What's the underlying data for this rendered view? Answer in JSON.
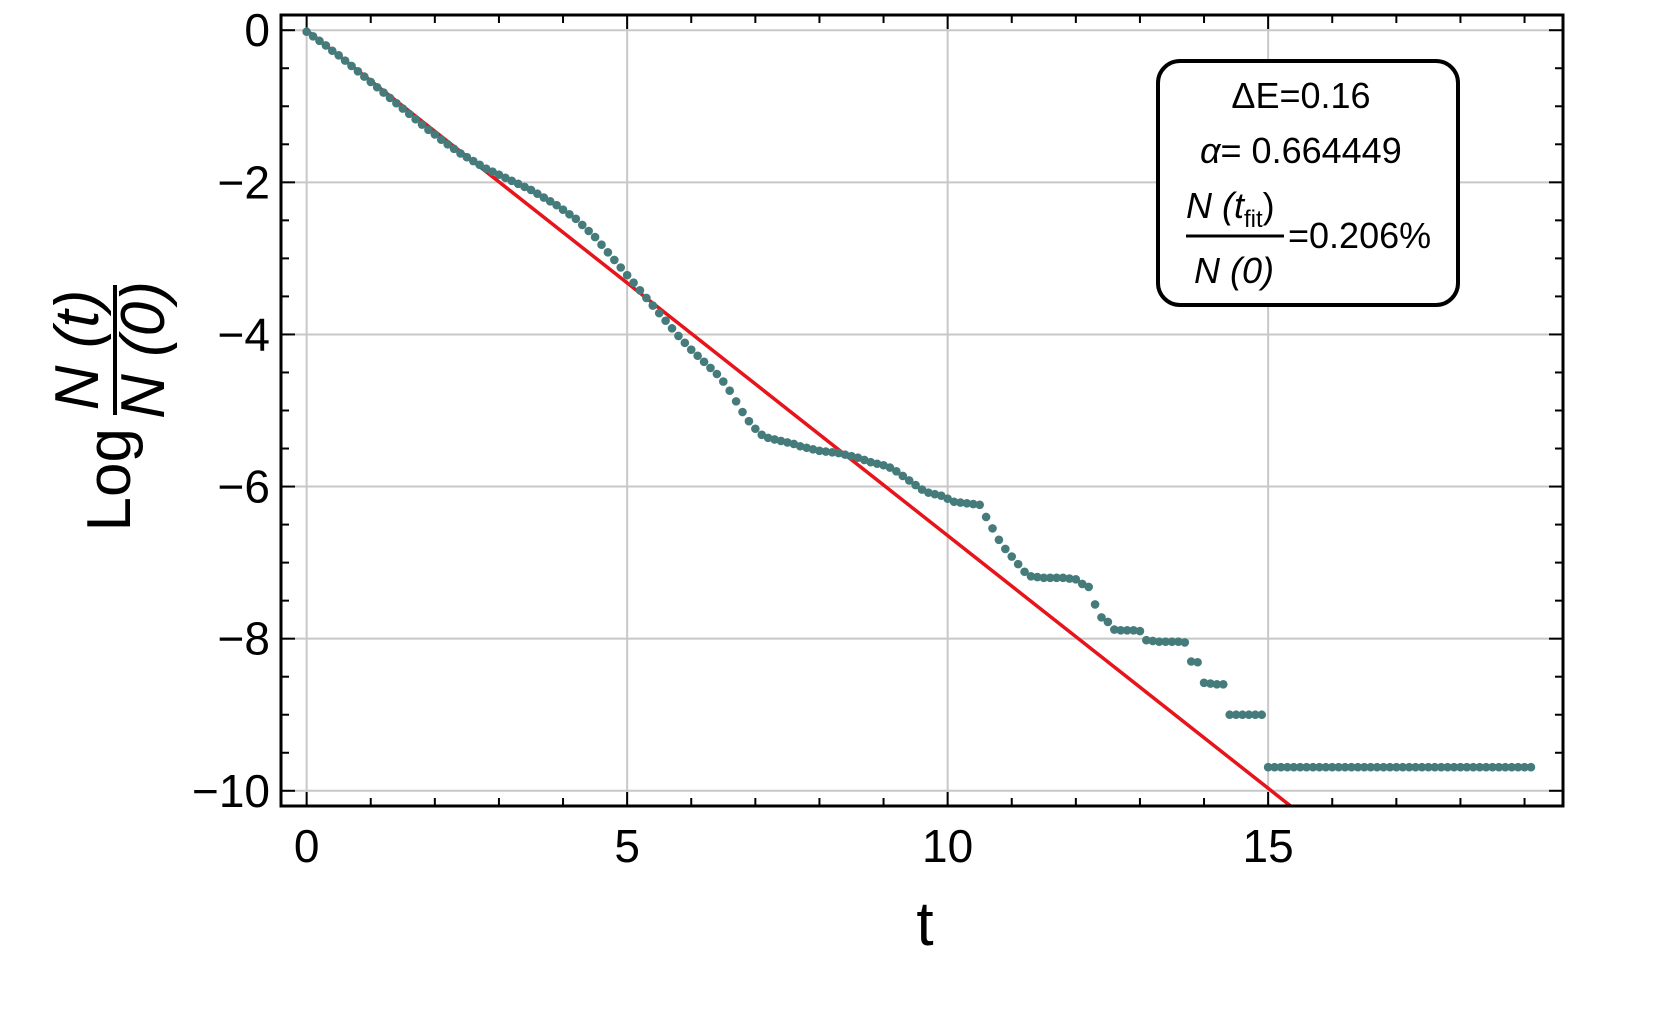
{
  "chart_data": {
    "type": "scatter",
    "xlabel": "t",
    "ylabel": {
      "prefix": "Log",
      "numerator": "N (t)",
      "denominator": "N (0)"
    },
    "xlim": [
      -0.4,
      19.6
    ],
    "ylim": [
      -10.2,
      0.2
    ],
    "xticks": [
      0,
      5,
      10,
      15
    ],
    "xtick_labels": [
      "0",
      "5",
      "10",
      "15"
    ],
    "yticks": [
      0,
      -2,
      -4,
      -6,
      -8,
      -10
    ],
    "ytick_labels": [
      "0",
      "−2",
      "−4",
      "−6",
      "−8",
      "−10"
    ],
    "grid": true,
    "marker_color": "#457b7b",
    "fit_color": "#e8141b",
    "fit_line": {
      "slope": -0.664449,
      "intercept": 0,
      "x_range": [
        0,
        15.35
      ]
    },
    "data_points": [
      [
        0,
        -0.02
      ],
      [
        0.1,
        -0.08
      ],
      [
        0.2,
        -0.14
      ],
      [
        0.3,
        -0.2
      ],
      [
        0.4,
        -0.27
      ],
      [
        0.5,
        -0.33
      ],
      [
        0.6,
        -0.4
      ],
      [
        0.7,
        -0.47
      ],
      [
        0.8,
        -0.54
      ],
      [
        0.9,
        -0.61
      ],
      [
        1.0,
        -0.68
      ],
      [
        1.1,
        -0.75
      ],
      [
        1.2,
        -0.82
      ],
      [
        1.3,
        -0.89
      ],
      [
        1.4,
        -0.96
      ],
      [
        1.5,
        -1.03
      ],
      [
        1.6,
        -1.1
      ],
      [
        1.7,
        -1.17
      ],
      [
        1.8,
        -1.24
      ],
      [
        1.9,
        -1.31
      ],
      [
        2.0,
        -1.37
      ],
      [
        2.1,
        -1.44
      ],
      [
        2.2,
        -1.5
      ],
      [
        2.3,
        -1.56
      ],
      [
        2.4,
        -1.62
      ],
      [
        2.5,
        -1.67
      ],
      [
        2.6,
        -1.72
      ],
      [
        2.7,
        -1.77
      ],
      [
        2.8,
        -1.82
      ],
      [
        2.9,
        -1.86
      ],
      [
        3.0,
        -1.9
      ],
      [
        3.1,
        -1.94
      ],
      [
        3.2,
        -1.98
      ],
      [
        3.3,
        -2.02
      ],
      [
        3.4,
        -2.06
      ],
      [
        3.5,
        -2.1
      ],
      [
        3.6,
        -2.15
      ],
      [
        3.7,
        -2.2
      ],
      [
        3.8,
        -2.25
      ],
      [
        3.9,
        -2.3
      ],
      [
        4.0,
        -2.36
      ],
      [
        4.1,
        -2.42
      ],
      [
        4.2,
        -2.48
      ],
      [
        4.3,
        -2.56
      ],
      [
        4.4,
        -2.64
      ],
      [
        4.5,
        -2.72
      ],
      [
        4.6,
        -2.82
      ],
      [
        4.7,
        -2.92
      ],
      [
        4.8,
        -3.02
      ],
      [
        4.9,
        -3.12
      ],
      [
        5.0,
        -3.22
      ],
      [
        5.1,
        -3.32
      ],
      [
        5.2,
        -3.42
      ],
      [
        5.3,
        -3.52
      ],
      [
        5.4,
        -3.62
      ],
      [
        5.5,
        -3.72
      ],
      [
        5.6,
        -3.82
      ],
      [
        5.7,
        -3.92
      ],
      [
        5.8,
        -4.02
      ],
      [
        5.9,
        -4.11
      ],
      [
        6.0,
        -4.2
      ],
      [
        6.1,
        -4.28
      ],
      [
        6.2,
        -4.36
      ],
      [
        6.3,
        -4.44
      ],
      [
        6.4,
        -4.52
      ],
      [
        6.5,
        -4.62
      ],
      [
        6.6,
        -4.74
      ],
      [
        6.7,
        -4.88
      ],
      [
        6.8,
        -5.02
      ],
      [
        6.9,
        -5.14
      ],
      [
        7.0,
        -5.24
      ],
      [
        7.1,
        -5.32
      ],
      [
        7.2,
        -5.36
      ],
      [
        7.3,
        -5.38
      ],
      [
        7.4,
        -5.4
      ],
      [
        7.5,
        -5.42
      ],
      [
        7.6,
        -5.44
      ],
      [
        7.7,
        -5.47
      ],
      [
        7.8,
        -5.49
      ],
      [
        7.9,
        -5.51
      ],
      [
        8.0,
        -5.53
      ],
      [
        8.1,
        -5.54
      ],
      [
        8.2,
        -5.55
      ],
      [
        8.3,
        -5.56
      ],
      [
        8.4,
        -5.58
      ],
      [
        8.5,
        -5.6
      ],
      [
        8.6,
        -5.62
      ],
      [
        8.7,
        -5.65
      ],
      [
        8.8,
        -5.68
      ],
      [
        8.9,
        -5.7
      ],
      [
        9.0,
        -5.72
      ],
      [
        9.1,
        -5.75
      ],
      [
        9.2,
        -5.8
      ],
      [
        9.3,
        -5.86
      ],
      [
        9.4,
        -5.92
      ],
      [
        9.5,
        -5.98
      ],
      [
        9.6,
        -6.04
      ],
      [
        9.7,
        -6.08
      ],
      [
        9.8,
        -6.1
      ],
      [
        9.9,
        -6.12
      ],
      [
        10.0,
        -6.16
      ],
      [
        10.1,
        -6.2
      ],
      [
        10.2,
        -6.21
      ],
      [
        10.3,
        -6.22
      ],
      [
        10.4,
        -6.23
      ],
      [
        10.5,
        -6.24
      ],
      [
        10.6,
        -6.4
      ],
      [
        10.7,
        -6.55
      ],
      [
        10.8,
        -6.7
      ],
      [
        10.9,
        -6.82
      ],
      [
        11.0,
        -6.92
      ],
      [
        11.1,
        -7.02
      ],
      [
        11.2,
        -7.12
      ],
      [
        11.3,
        -7.18
      ],
      [
        11.4,
        -7.19
      ],
      [
        11.5,
        -7.2
      ],
      [
        11.6,
        -7.2
      ],
      [
        11.7,
        -7.2
      ],
      [
        11.8,
        -7.2
      ],
      [
        11.9,
        -7.21
      ],
      [
        12.0,
        -7.22
      ],
      [
        12.1,
        -7.28
      ],
      [
        12.2,
        -7.32
      ],
      [
        12.3,
        -7.55
      ],
      [
        12.4,
        -7.72
      ],
      [
        12.5,
        -7.78
      ],
      [
        12.6,
        -7.88
      ],
      [
        12.7,
        -7.89
      ],
      [
        12.8,
        -7.89
      ],
      [
        12.9,
        -7.89
      ],
      [
        13.0,
        -7.9
      ],
      [
        13.1,
        -8.02
      ],
      [
        13.2,
        -8.03
      ],
      [
        13.3,
        -8.04
      ],
      [
        13.4,
        -8.04
      ],
      [
        13.5,
        -8.04
      ],
      [
        13.6,
        -8.04
      ],
      [
        13.7,
        -8.05
      ],
      [
        13.8,
        -8.3
      ],
      [
        13.9,
        -8.31
      ],
      [
        14.0,
        -8.58
      ],
      [
        14.1,
        -8.59
      ],
      [
        14.2,
        -8.6
      ],
      [
        14.3,
        -8.6
      ],
      [
        14.4,
        -9.0
      ],
      [
        14.5,
        -9.0
      ],
      [
        14.6,
        -9.0
      ],
      [
        14.7,
        -9.0
      ],
      [
        14.8,
        -9.0
      ],
      [
        14.9,
        -9.0
      ],
      [
        15.0,
        -9.69
      ],
      [
        15.1,
        -9.69
      ],
      [
        15.2,
        -9.69
      ],
      [
        15.3,
        -9.69
      ],
      [
        15.4,
        -9.69
      ],
      [
        15.5,
        -9.69
      ],
      [
        15.6,
        -9.69
      ],
      [
        15.7,
        -9.69
      ],
      [
        15.8,
        -9.69
      ],
      [
        15.9,
        -9.69
      ],
      [
        16.0,
        -9.69
      ],
      [
        16.1,
        -9.69
      ],
      [
        16.2,
        -9.69
      ],
      [
        16.3,
        -9.69
      ],
      [
        16.4,
        -9.69
      ],
      [
        16.5,
        -9.69
      ],
      [
        16.6,
        -9.69
      ],
      [
        16.7,
        -9.69
      ],
      [
        16.8,
        -9.69
      ],
      [
        16.9,
        -9.69
      ],
      [
        17.0,
        -9.69
      ],
      [
        17.1,
        -9.69
      ],
      [
        17.2,
        -9.69
      ],
      [
        17.3,
        -9.69
      ],
      [
        17.4,
        -9.69
      ],
      [
        17.5,
        -9.69
      ],
      [
        17.6,
        -9.69
      ],
      [
        17.7,
        -9.69
      ],
      [
        17.8,
        -9.69
      ],
      [
        17.9,
        -9.69
      ],
      [
        18.0,
        -9.69
      ],
      [
        18.1,
        -9.69
      ],
      [
        18.2,
        -9.69
      ],
      [
        18.3,
        -9.69
      ],
      [
        18.4,
        -9.69
      ],
      [
        18.5,
        -9.69
      ],
      [
        18.6,
        -9.69
      ],
      [
        18.7,
        -9.69
      ],
      [
        18.8,
        -9.69
      ],
      [
        18.9,
        -9.69
      ],
      [
        19.0,
        -9.69
      ],
      [
        19.1,
        -9.69
      ]
    ],
    "legend": {
      "placement": "top-right",
      "line1": "ΔE=0.16",
      "alpha_symbol": "α",
      "alpha_value": "= 0.664449",
      "frac_num_main": "N (t",
      "frac_num_sub": "fit",
      "frac_num_close": ")",
      "frac_den": "N (0)",
      "frac_value": "=0.206%"
    }
  }
}
